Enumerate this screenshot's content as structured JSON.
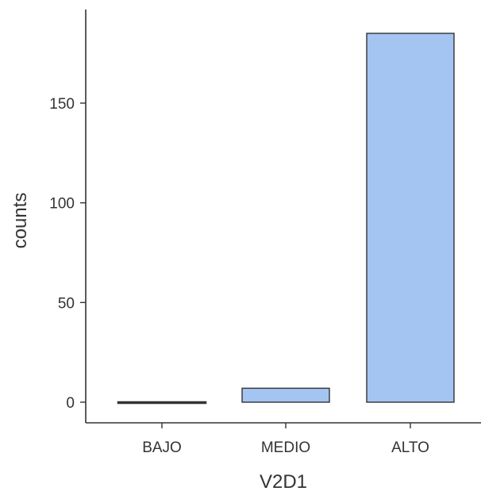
{
  "chart_data": {
    "type": "bar",
    "xlabel": "V2D1",
    "ylabel": "counts",
    "categories": [
      "BAJO",
      "MEDIO",
      "ALTO"
    ],
    "values": [
      0,
      7,
      185
    ],
    "ylim": [
      -10,
      195
    ],
    "yticks": [
      0,
      50,
      100,
      150
    ],
    "grid": false,
    "colors": {
      "bar_fill": "#a4c4f2",
      "bar_stroke": "#333333",
      "axis": "#333333"
    }
  }
}
